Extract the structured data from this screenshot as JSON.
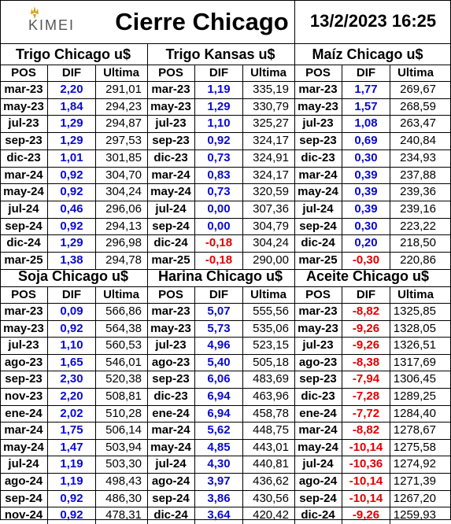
{
  "header": {
    "logo_text": "KIMEI",
    "title": "Cierre Chicago",
    "date": "13/2/2023 16:25"
  },
  "colors": {
    "positive": "#0a0ad0",
    "negative": "#e00000"
  },
  "columns": {
    "pos": "POS",
    "dif": "DIF",
    "ultima": "Ultima"
  },
  "panels": [
    {
      "title": "Trigo Chicago u$",
      "rows": [
        [
          "mar-23",
          "2,20",
          "291,01"
        ],
        [
          "may-23",
          "1,84",
          "294,23"
        ],
        [
          "jul-23",
          "1,29",
          "294,87"
        ],
        [
          "sep-23",
          "1,29",
          "297,53"
        ],
        [
          "dic-23",
          "1,01",
          "301,85"
        ],
        [
          "mar-24",
          "0,92",
          "304,70"
        ],
        [
          "may-24",
          "0,92",
          "304,24"
        ],
        [
          "jul-24",
          "0,46",
          "296,06"
        ],
        [
          "sep-24",
          "0,92",
          "294,13"
        ],
        [
          "dic-24",
          "1,29",
          "296,98"
        ],
        [
          "mar-25",
          "1,38",
          "294,78"
        ]
      ]
    },
    {
      "title": "Trigo Kansas u$",
      "rows": [
        [
          "mar-23",
          "1,19",
          "335,19"
        ],
        [
          "may-23",
          "1,29",
          "330,79"
        ],
        [
          "jul-23",
          "1,10",
          "325,27"
        ],
        [
          "sep-23",
          "0,92",
          "324,17"
        ],
        [
          "dic-23",
          "0,73",
          "324,91"
        ],
        [
          "mar-24",
          "0,83",
          "324,17"
        ],
        [
          "may-24",
          "0,73",
          "320,59"
        ],
        [
          "jul-24",
          "0,00",
          "307,36"
        ],
        [
          "sep-24",
          "0,00",
          "304,79"
        ],
        [
          "dic-24",
          "-0,18",
          "304,24"
        ],
        [
          "mar-25",
          "-0,18",
          "290,00"
        ]
      ]
    },
    {
      "title": "Maíz Chicago u$",
      "rows": [
        [
          "mar-23",
          "1,77",
          "269,67"
        ],
        [
          "may-23",
          "1,57",
          "268,59"
        ],
        [
          "jul-23",
          "1,08",
          "263,47"
        ],
        [
          "sep-23",
          "0,69",
          "240,84"
        ],
        [
          "dic-23",
          "0,30",
          "234,93"
        ],
        [
          "mar-24",
          "0,39",
          "237,88"
        ],
        [
          "may-24",
          "0,39",
          "239,36"
        ],
        [
          "jul-24",
          "0,39",
          "239,16"
        ],
        [
          "sep-24",
          "0,30",
          "223,22"
        ],
        [
          "dic-24",
          "0,20",
          "218,50"
        ],
        [
          "mar-25",
          "-0,30",
          "220,86"
        ]
      ]
    },
    {
      "title": "Soja Chicago u$",
      "rows": [
        [
          "mar-23",
          "0,09",
          "566,86"
        ],
        [
          "may-23",
          "0,92",
          "564,38"
        ],
        [
          "jul-23",
          "1,10",
          "560,53"
        ],
        [
          "ago-23",
          "1,65",
          "546,01"
        ],
        [
          "sep-23",
          "2,30",
          "520,38"
        ],
        [
          "nov-23",
          "2,20",
          "508,81"
        ],
        [
          "ene-24",
          "2,02",
          "510,28"
        ],
        [
          "mar-24",
          "1,75",
          "506,14"
        ],
        [
          "may-24",
          "1,47",
          "503,94"
        ],
        [
          "jul-24",
          "1,19",
          "503,30"
        ],
        [
          "ago-24",
          "1,19",
          "498,43"
        ],
        [
          "sep-24",
          "0,92",
          "486,30"
        ],
        [
          "nov-24",
          "0,92",
          "478,31"
        ]
      ]
    },
    {
      "title": "Harina Chicago u$",
      "rows": [
        [
          "mar-23",
          "5,07",
          "555,56"
        ],
        [
          "may-23",
          "5,73",
          "535,06"
        ],
        [
          "jul-23",
          "4,96",
          "523,15"
        ],
        [
          "ago-23",
          "5,40",
          "505,18"
        ],
        [
          "sep-23",
          "6,06",
          "483,69"
        ],
        [
          "dic-23",
          "6,94",
          "463,96"
        ],
        [
          "ene-24",
          "6,94",
          "458,78"
        ],
        [
          "mar-24",
          "5,62",
          "448,75"
        ],
        [
          "may-24",
          "4,85",
          "443,01"
        ],
        [
          "jul-24",
          "4,30",
          "440,81"
        ],
        [
          "ago-24",
          "3,97",
          "436,62"
        ],
        [
          "sep-24",
          "3,86",
          "430,56"
        ],
        [
          "dic-24",
          "3,64",
          "420,42"
        ]
      ]
    },
    {
      "title": "Aceite Chicago u$",
      "rows": [
        [
          "mar-23",
          "-8,82",
          "1325,85"
        ],
        [
          "may-23",
          "-9,26",
          "1328,05"
        ],
        [
          "jul-23",
          "-9,26",
          "1326,51"
        ],
        [
          "ago-23",
          "-8,38",
          "1317,69"
        ],
        [
          "sep-23",
          "-7,94",
          "1306,45"
        ],
        [
          "dic-23",
          "-7,28",
          "1289,25"
        ],
        [
          "ene-24",
          "-7,72",
          "1284,40"
        ],
        [
          "mar-24",
          "-8,82",
          "1278,67"
        ],
        [
          "may-24",
          "-10,14",
          "1275,58"
        ],
        [
          "jul-24",
          "-10,36",
          "1274,92"
        ],
        [
          "ago-24",
          "-10,14",
          "1271,39"
        ],
        [
          "sep-24",
          "-10,14",
          "1267,20"
        ],
        [
          "dic-24",
          "-9,26",
          "1259,93"
        ]
      ]
    }
  ]
}
